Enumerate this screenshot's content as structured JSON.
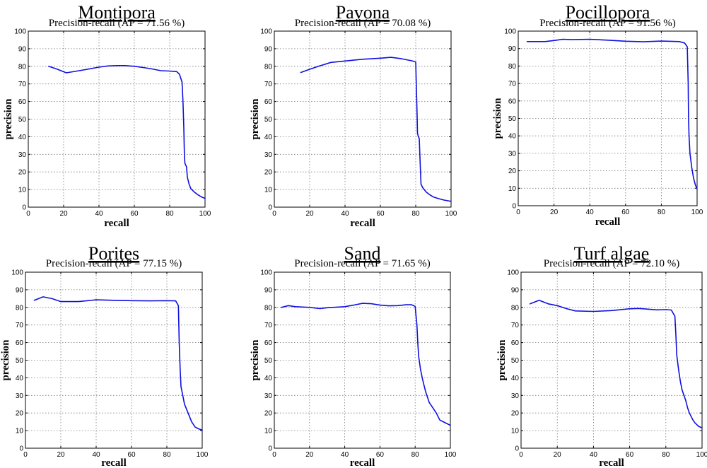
{
  "chart_data": [
    {
      "type": "line",
      "title": "Montipora",
      "subtitle": "Precision-recall (AP = 71.56 %)",
      "xlabel": "recall",
      "ylabel": "precision",
      "xlim": [
        0,
        100
      ],
      "ylim": [
        0,
        100
      ],
      "xticks": [
        0,
        20,
        40,
        60,
        80,
        100
      ],
      "yticks": [
        0,
        10,
        20,
        30,
        40,
        50,
        60,
        70,
        80,
        90,
        100
      ],
      "grid": true,
      "series": [
        {
          "color": "#1010e0",
          "x": [
            11.5,
            16,
            21.5,
            30,
            40,
            45,
            50,
            55,
            60,
            65,
            70,
            75,
            80,
            84,
            85.5,
            86.5,
            87,
            87.5,
            88,
            88.3,
            88.6,
            89,
            89.5,
            90,
            91,
            92,
            94,
            96,
            98,
            100
          ],
          "y": [
            80,
            78.5,
            76.3,
            77.7,
            79.5,
            80.2,
            80.4,
            80.4,
            80.0,
            79.3,
            78.5,
            77.5,
            77.3,
            77.0,
            75.5,
            72.5,
            71.0,
            60.0,
            45.0,
            30.0,
            25.0,
            24.0,
            23.0,
            17.0,
            13.0,
            10.5,
            8.5,
            7.0,
            5.8,
            5.0
          ]
        }
      ]
    },
    {
      "type": "line",
      "title": "Pavona",
      "subtitle": "Precision-recall (AP = 70.08 %)",
      "xlabel": "recall",
      "ylabel": "precision",
      "xlim": [
        0,
        100
      ],
      "ylim": [
        0,
        100
      ],
      "xticks": [
        0,
        20,
        40,
        60,
        80,
        100
      ],
      "yticks": [
        0,
        10,
        20,
        30,
        40,
        50,
        60,
        70,
        80,
        90,
        100
      ],
      "grid": true,
      "series": [
        {
          "color": "#1010e0",
          "x": [
            15,
            20,
            25,
            32,
            40,
            50,
            60,
            66,
            72,
            78,
            80,
            80.3,
            80.7,
            81,
            81.5,
            82,
            82.5,
            83,
            84,
            86,
            88,
            90,
            93,
            96,
            100
          ],
          "y": [
            76.5,
            78.3,
            80.0,
            82.2,
            83.0,
            84.0,
            84.6,
            85.1,
            84.3,
            83.1,
            82.5,
            70.0,
            55.0,
            42.0,
            40.0,
            39.0,
            25.0,
            13.0,
            11.0,
            8.5,
            7.0,
            5.8,
            4.8,
            4.0,
            3.3
          ]
        }
      ]
    },
    {
      "type": "line",
      "title": "Pocillopora",
      "subtitle": "Precision-recall (AP = 91.56 %)",
      "xlabel": "recall",
      "ylabel": "precision",
      "xlim": [
        0,
        100
      ],
      "ylim": [
        0,
        100
      ],
      "xticks": [
        0,
        20,
        40,
        60,
        80,
        100
      ],
      "yticks": [
        0,
        10,
        20,
        30,
        40,
        50,
        60,
        70,
        80,
        90,
        100
      ],
      "grid": true,
      "series": [
        {
          "color": "#1010e0",
          "x": [
            5,
            10,
            15,
            20,
            25,
            30,
            40,
            50,
            60,
            70,
            80,
            90,
            93,
            94.5,
            95,
            95.2,
            95.5,
            96,
            97,
            98,
            99,
            100
          ],
          "y": [
            94.0,
            94.0,
            94.0,
            94.6,
            95.3,
            95.1,
            95.3,
            94.8,
            94.2,
            93.9,
            94.3,
            94.0,
            93.2,
            91.0,
            70.0,
            50.0,
            40.0,
            30.0,
            22.0,
            16.0,
            12.0,
            9.5
          ]
        }
      ]
    },
    {
      "type": "line",
      "title": "Porites",
      "subtitle": "Precision-recall (AP = 77.15 %)",
      "xlabel": "recall",
      "ylabel": "precision",
      "xlim": [
        0,
        100
      ],
      "ylim": [
        0,
        100
      ],
      "xticks": [
        0,
        20,
        40,
        60,
        80,
        100
      ],
      "yticks": [
        0,
        10,
        20,
        30,
        40,
        50,
        60,
        70,
        80,
        90,
        100
      ],
      "grid": true,
      "series": [
        {
          "color": "#1010e0",
          "x": [
            5,
            10,
            15,
            20,
            30,
            40,
            50,
            60,
            70,
            80,
            85,
            86.5,
            87,
            87.5,
            88,
            89,
            90,
            92,
            94,
            96,
            98,
            100
          ],
          "y": [
            84.0,
            86.0,
            85.0,
            83.3,
            83.3,
            84.3,
            84.0,
            83.8,
            83.7,
            83.8,
            83.7,
            81.0,
            60.0,
            45.0,
            35.0,
            30.0,
            25.0,
            20.0,
            15.0,
            12.0,
            11.0,
            10.3
          ]
        }
      ]
    },
    {
      "type": "line",
      "title": "Sand",
      "subtitle": "Precision-recall (AP = 71.65 %)",
      "xlabel": "recall",
      "ylabel": "precision",
      "xlim": [
        0,
        100
      ],
      "ylim": [
        0,
        100
      ],
      "xticks": [
        0,
        20,
        40,
        60,
        80,
        100
      ],
      "yticks": [
        0,
        10,
        20,
        30,
        40,
        50,
        60,
        70,
        80,
        90,
        100
      ],
      "grid": true,
      "series": [
        {
          "color": "#1010e0",
          "x": [
            4,
            8,
            12,
            20,
            26,
            30,
            40,
            45,
            50,
            55,
            60,
            65,
            70,
            75,
            78,
            80,
            81,
            81.5,
            82,
            83,
            84,
            85,
            86,
            88,
            90,
            92,
            94,
            96,
            98,
            100
          ],
          "y": [
            80.0,
            81.0,
            80.4,
            80.0,
            79.3,
            79.8,
            80.4,
            81.3,
            82.3,
            82.1,
            81.3,
            80.9,
            81.0,
            81.5,
            81.5,
            80.6,
            70.0,
            60.0,
            52.0,
            45.0,
            40.0,
            36.0,
            32.0,
            26.0,
            23.0,
            20.0,
            16.0,
            15.0,
            14.0,
            13.0
          ]
        }
      ]
    },
    {
      "type": "line",
      "title": "Turf algae",
      "subtitle": "Precision-recall (AP = 72.10 %)",
      "xlabel": "recall",
      "ylabel": "precision",
      "xlim": [
        0,
        100
      ],
      "ylim": [
        0,
        100
      ],
      "xticks": [
        0,
        20,
        40,
        60,
        80,
        100
      ],
      "yticks": [
        0,
        10,
        20,
        30,
        40,
        50,
        60,
        70,
        80,
        90,
        100
      ],
      "grid": true,
      "series": [
        {
          "color": "#1010e0",
          "x": [
            5,
            10,
            15,
            20,
            25,
            30,
            40,
            50,
            60,
            65,
            70,
            75,
            80,
            83,
            85,
            85.5,
            86,
            87,
            88,
            89,
            90,
            91,
            92,
            93,
            94,
            95,
            96,
            98,
            100
          ],
          "y": [
            82.0,
            84.0,
            82.0,
            81.0,
            79.3,
            78.0,
            77.7,
            78.2,
            79.2,
            79.4,
            79.0,
            78.6,
            78.7,
            78.5,
            75.0,
            65.0,
            53.0,
            45.0,
            38.0,
            33.0,
            30.0,
            27.0,
            23.0,
            20.0,
            18.0,
            16.0,
            14.5,
            12.5,
            11.5
          ]
        }
      ]
    }
  ]
}
